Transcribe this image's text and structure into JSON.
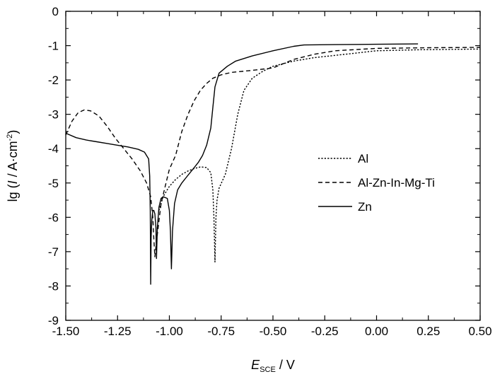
{
  "chart_data": {
    "type": "line",
    "xlabel_main": "E",
    "xlabel_sub": "SCE",
    "xlabel_unit": " / V",
    "ylabel_prefix": "lg (",
    "ylabel_var": "I",
    "ylabel_unit": " / A·cm",
    "ylabel_sup": "-2",
    "ylabel_suffix": ")",
    "xlim": [
      -1.5,
      0.5
    ],
    "ylim": [
      -9,
      0
    ],
    "x_ticks": [
      "-1.50",
      "-1.25",
      "-1.00",
      "-0.75",
      "-0.50",
      "-0.25",
      "0.00",
      "0.25",
      "0.50"
    ],
    "y_ticks": [
      "0",
      "-1",
      "-2",
      "-3",
      "-4",
      "-5",
      "-6",
      "-7",
      "-8",
      "-9"
    ],
    "legend_position": "right",
    "series": [
      {
        "name": "Al",
        "dash": "dotted",
        "color": "#000000",
        "points": [
          [
            -1.05,
            -5.8
          ],
          [
            -1.04,
            -5.6
          ],
          [
            -1.03,
            -5.4
          ],
          [
            -1.02,
            -5.3
          ],
          [
            -1.0,
            -5.1
          ],
          [
            -0.97,
            -4.9
          ],
          [
            -0.94,
            -4.75
          ],
          [
            -0.91,
            -4.65
          ],
          [
            -0.88,
            -4.58
          ],
          [
            -0.85,
            -4.53
          ],
          [
            -0.82,
            -4.55
          ],
          [
            -0.8,
            -4.7
          ],
          [
            -0.79,
            -5.2
          ],
          [
            -0.785,
            -6.0
          ],
          [
            -0.78,
            -7.3
          ],
          [
            -0.775,
            -6.0
          ],
          [
            -0.77,
            -5.5
          ],
          [
            -0.76,
            -5.15
          ],
          [
            -0.745,
            -4.95
          ],
          [
            -0.73,
            -4.75
          ],
          [
            -0.7,
            -4.0
          ],
          [
            -0.67,
            -3.0
          ],
          [
            -0.64,
            -2.3
          ],
          [
            -0.6,
            -1.95
          ],
          [
            -0.55,
            -1.75
          ],
          [
            -0.5,
            -1.6
          ],
          [
            -0.4,
            -1.45
          ],
          [
            -0.3,
            -1.35
          ],
          [
            -0.15,
            -1.25
          ],
          [
            0.0,
            -1.15
          ],
          [
            0.2,
            -1.12
          ],
          [
            0.5,
            -1.1
          ]
        ]
      },
      {
        "name": "Al-Zn-In-Mg-Ti",
        "dash": "dashed",
        "color": "#000000",
        "points": [
          [
            -1.5,
            -3.6
          ],
          [
            -1.47,
            -3.2
          ],
          [
            -1.44,
            -2.95
          ],
          [
            -1.41,
            -2.87
          ],
          [
            -1.38,
            -2.9
          ],
          [
            -1.34,
            -3.05
          ],
          [
            -1.3,
            -3.35
          ],
          [
            -1.26,
            -3.7
          ],
          [
            -1.22,
            -4.0
          ],
          [
            -1.18,
            -4.3
          ],
          [
            -1.14,
            -4.65
          ],
          [
            -1.11,
            -5.0
          ],
          [
            -1.09,
            -5.4
          ],
          [
            -1.08,
            -6.0
          ],
          [
            -1.075,
            -6.6
          ],
          [
            -1.07,
            -7.15
          ],
          [
            -1.06,
            -6.6
          ],
          [
            -1.05,
            -6.1
          ],
          [
            -1.04,
            -5.6
          ],
          [
            -1.02,
            -5.1
          ],
          [
            -1.0,
            -4.6
          ],
          [
            -0.97,
            -4.2
          ],
          [
            -0.94,
            -3.5
          ],
          [
            -0.91,
            -3.0
          ],
          [
            -0.88,
            -2.6
          ],
          [
            -0.85,
            -2.3
          ],
          [
            -0.82,
            -2.1
          ],
          [
            -0.79,
            -1.95
          ],
          [
            -0.75,
            -1.85
          ],
          [
            -0.7,
            -1.78
          ],
          [
            -0.6,
            -1.72
          ],
          [
            -0.5,
            -1.65
          ],
          [
            -0.4,
            -1.4
          ],
          [
            -0.3,
            -1.25
          ],
          [
            -0.2,
            -1.15
          ],
          [
            0.0,
            -1.08
          ],
          [
            0.25,
            -1.06
          ],
          [
            0.5,
            -1.05
          ]
        ]
      },
      {
        "name": "Zn",
        "dash": "solid",
        "color": "#000000",
        "points": [
          [
            -1.5,
            -3.55
          ],
          [
            -1.45,
            -3.68
          ],
          [
            -1.4,
            -3.75
          ],
          [
            -1.35,
            -3.8
          ],
          [
            -1.3,
            -3.85
          ],
          [
            -1.25,
            -3.9
          ],
          [
            -1.2,
            -3.95
          ],
          [
            -1.15,
            -4.02
          ],
          [
            -1.12,
            -4.1
          ],
          [
            -1.1,
            -4.3
          ],
          [
            -1.095,
            -4.8
          ],
          [
            -1.092,
            -5.8
          ],
          [
            -1.09,
            -7.95
          ],
          [
            -1.088,
            -6.6
          ],
          [
            -1.085,
            -6.1
          ],
          [
            -1.08,
            -5.8
          ],
          [
            -1.075,
            -5.8
          ],
          [
            -1.07,
            -5.9
          ],
          [
            -1.065,
            -6.3
          ],
          [
            -1.062,
            -7.2
          ],
          [
            -1.058,
            -6.3
          ],
          [
            -1.05,
            -5.7
          ],
          [
            -1.04,
            -5.45
          ],
          [
            -1.03,
            -5.4
          ],
          [
            -1.01,
            -5.45
          ],
          [
            -1.0,
            -5.8
          ],
          [
            -0.995,
            -6.4
          ],
          [
            -0.99,
            -7.5
          ],
          [
            -0.985,
            -6.4
          ],
          [
            -0.975,
            -5.6
          ],
          [
            -0.96,
            -5.2
          ],
          [
            -0.94,
            -5.0
          ],
          [
            -0.92,
            -4.85
          ],
          [
            -0.9,
            -4.7
          ],
          [
            -0.88,
            -4.55
          ],
          [
            -0.86,
            -4.4
          ],
          [
            -0.84,
            -4.2
          ],
          [
            -0.82,
            -3.9
          ],
          [
            -0.8,
            -3.4
          ],
          [
            -0.79,
            -2.8
          ],
          [
            -0.78,
            -2.2
          ],
          [
            -0.76,
            -1.8
          ],
          [
            -0.72,
            -1.6
          ],
          [
            -0.68,
            -1.45
          ],
          [
            -0.6,
            -1.3
          ],
          [
            -0.5,
            -1.15
          ],
          [
            -0.4,
            -1.02
          ],
          [
            -0.35,
            -0.98
          ],
          [
            -0.2,
            -0.97
          ],
          [
            0.0,
            -0.96
          ],
          [
            0.2,
            -0.95
          ]
        ]
      }
    ]
  }
}
